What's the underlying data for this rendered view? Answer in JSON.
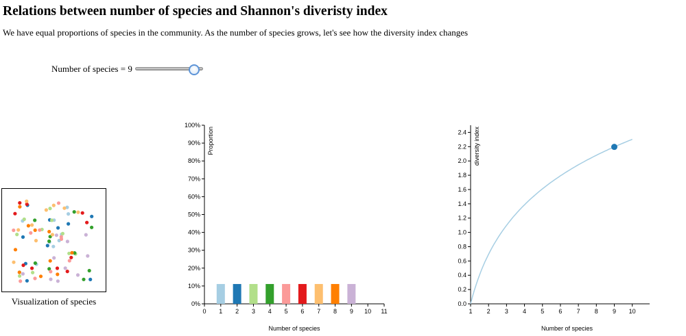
{
  "page": {
    "title": "Relations between number of species and Shannon's diveristy index",
    "intro": "We have equal proportions of species in the community. As the number of species grows, let's see how the diversity index changes"
  },
  "controls": {
    "slider_prefix": "Number of species = ",
    "species_count": 9,
    "slider_min": 1,
    "slider_max": 10,
    "accent_color": "#5c93d7"
  },
  "species_panel": {
    "caption": "Visualization of species",
    "dot_count_per_species": 10
  },
  "palette": [
    "#a6cee3",
    "#1f78b4",
    "#b2df8a",
    "#33a02c",
    "#fb9a99",
    "#e31a1c",
    "#fdbf6f",
    "#ff7f00",
    "#cab2d6",
    "#6a3d9a"
  ],
  "chart_data": [
    {
      "type": "bar",
      "xlabel": "Number of species",
      "ylabel": "Proportion",
      "x_ticks": [
        0,
        1,
        2,
        3,
        4,
        5,
        6,
        7,
        8,
        9,
        10,
        11
      ],
      "xlim": [
        0,
        11
      ],
      "y_ticks": [
        "0%",
        "10%",
        "20%",
        "30%",
        "40%",
        "50%",
        "60%",
        "70%",
        "80%",
        "90%",
        "100%"
      ],
      "ylim": [
        0,
        1
      ],
      "categories": [
        1,
        2,
        3,
        4,
        5,
        6,
        7,
        8,
        9
      ],
      "values": [
        0.111,
        0.111,
        0.111,
        0.111,
        0.111,
        0.111,
        0.111,
        0.111,
        0.111
      ],
      "grid": false,
      "legend": "none"
    },
    {
      "type": "line",
      "xlabel": "Number of species",
      "ylabel": "diversity index",
      "x_ticks": [
        1,
        2,
        3,
        4,
        5,
        6,
        7,
        8,
        9,
        10
      ],
      "xlim": [
        1,
        10
      ],
      "y_ticks": [
        "0.0",
        "0.2",
        "0.4",
        "0.6",
        "0.8",
        "1.0",
        "1.2",
        "1.4",
        "1.6",
        "1.8",
        "2.0",
        "2.2",
        "2.4"
      ],
      "ylim": [
        0,
        2.5
      ],
      "series": [
        {
          "x": [
            1,
            2,
            3,
            4,
            5,
            6,
            7,
            8,
            9,
            10
          ],
          "y": [
            0.0,
            0.693,
            1.099,
            1.386,
            1.609,
            1.792,
            1.946,
            2.079,
            2.197,
            2.303
          ],
          "color": "#a6cee3"
        }
      ],
      "highlight": {
        "x": 9,
        "y": 2.197,
        "color": "#1f78b4"
      },
      "grid": false,
      "legend": "none"
    }
  ]
}
